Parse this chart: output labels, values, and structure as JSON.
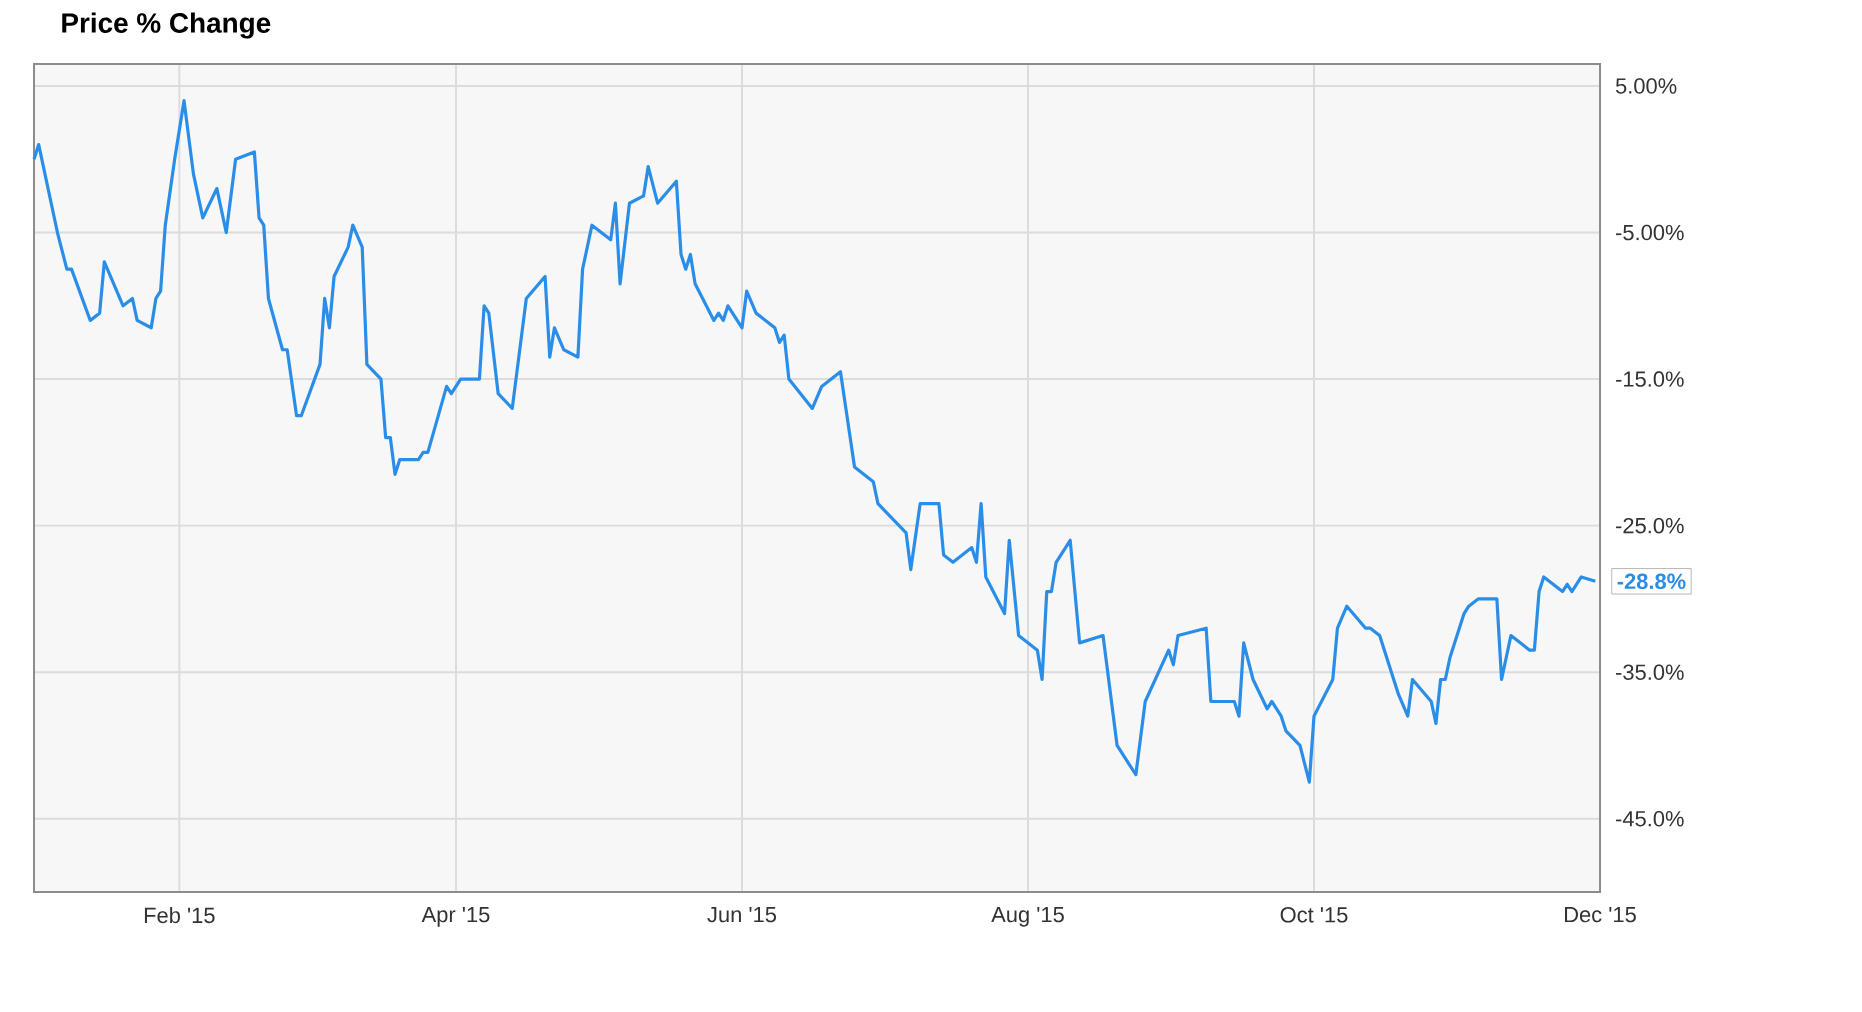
{
  "chart_data": {
    "type": "line",
    "title": "Price % Change",
    "x": [
      "2015-01-01",
      "2015-01-02",
      "2015-01-06",
      "2015-01-08",
      "2015-01-09",
      "2015-01-13",
      "2015-01-15",
      "2015-01-16",
      "2015-01-20",
      "2015-01-22",
      "2015-01-23",
      "2015-01-26",
      "2015-01-27",
      "2015-01-28",
      "2015-01-29",
      "2015-01-31",
      "2015-02-02",
      "2015-02-04",
      "2015-02-06",
      "2015-02-09",
      "2015-02-11",
      "2015-02-13",
      "2015-02-17",
      "2015-02-18",
      "2015-02-19",
      "2015-02-20",
      "2015-02-23",
      "2015-02-24",
      "2015-02-26",
      "2015-02-27",
      "2015-03-03",
      "2015-03-04",
      "2015-03-05",
      "2015-03-06",
      "2015-03-09",
      "2015-03-10",
      "2015-03-12",
      "2015-03-13",
      "2015-03-16",
      "2015-03-17",
      "2015-03-18",
      "2015-03-19",
      "2015-03-20",
      "2015-03-24",
      "2015-03-25",
      "2015-03-26",
      "2015-03-30",
      "2015-03-31",
      "2015-04-02",
      "2015-04-06",
      "2015-04-07",
      "2015-04-08",
      "2015-04-10",
      "2015-04-13",
      "2015-04-16",
      "2015-04-20",
      "2015-04-21",
      "2015-04-22",
      "2015-04-24",
      "2015-04-27",
      "2015-04-28",
      "2015-04-30",
      "2015-05-04",
      "2015-05-05",
      "2015-05-06",
      "2015-05-08",
      "2015-05-11",
      "2015-05-12",
      "2015-05-14",
      "2015-05-18",
      "2015-05-19",
      "2015-05-20",
      "2015-05-21",
      "2015-05-22",
      "2015-05-26",
      "2015-05-27",
      "2015-05-28",
      "2015-05-29",
      "2015-06-01",
      "2015-06-02",
      "2015-06-04",
      "2015-06-08",
      "2015-06-09",
      "2015-06-10",
      "2015-06-11",
      "2015-06-16",
      "2015-06-18",
      "2015-06-22",
      "2015-06-25",
      "2015-06-29",
      "2015-06-30",
      "2015-07-06",
      "2015-07-07",
      "2015-07-09",
      "2015-07-13",
      "2015-07-14",
      "2015-07-16",
      "2015-07-20",
      "2015-07-21",
      "2015-07-22",
      "2015-07-23",
      "2015-07-27",
      "2015-07-28",
      "2015-07-30",
      "2015-08-03",
      "2015-08-04",
      "2015-08-05",
      "2015-08-06",
      "2015-08-07",
      "2015-08-10",
      "2015-08-12",
      "2015-08-17",
      "2015-08-20",
      "2015-08-24",
      "2015-08-26",
      "2015-08-31",
      "2015-09-01",
      "2015-09-02",
      "2015-09-08",
      "2015-09-09",
      "2015-09-14",
      "2015-09-15",
      "2015-09-16",
      "2015-09-18",
      "2015-09-21",
      "2015-09-22",
      "2015-09-24",
      "2015-09-25",
      "2015-09-28",
      "2015-09-30",
      "2015-10-01",
      "2015-10-05",
      "2015-10-06",
      "2015-10-08",
      "2015-10-12",
      "2015-10-13",
      "2015-10-15",
      "2015-10-19",
      "2015-10-21",
      "2015-10-22",
      "2015-10-26",
      "2015-10-27",
      "2015-10-28",
      "2015-10-29",
      "2015-10-30",
      "2015-11-02",
      "2015-11-03",
      "2015-11-05",
      "2015-11-09",
      "2015-11-10",
      "2015-11-12",
      "2015-11-16",
      "2015-11-17",
      "2015-11-18",
      "2015-11-19",
      "2015-11-23",
      "2015-11-24",
      "2015-11-25",
      "2015-11-27",
      "2015-11-30"
    ],
    "series": [
      {
        "color": "#2a8ee8",
        "values": [
          0,
          1,
          -5,
          -7.5,
          -7.5,
          -11,
          -10.5,
          -7,
          -10,
          -9.5,
          -11,
          -11.5,
          -9.5,
          -9,
          -4.5,
          0,
          4,
          -1,
          -4,
          -2,
          -5,
          0,
          0.5,
          -4,
          -4.5,
          -9.5,
          -13,
          -13,
          -17.5,
          -17.5,
          -14,
          -9.5,
          -11.5,
          -8,
          -6,
          -4.5,
          -6,
          -14,
          -15,
          -19,
          -19,
          -21.5,
          -20.5,
          -20.5,
          -20,
          -20,
          -15.5,
          -16,
          -15,
          -15,
          -10,
          -10.5,
          -16,
          -17,
          -9.5,
          -8,
          -13.5,
          -11.5,
          -13,
          -13.5,
          -7.5,
          -4.5,
          -5.5,
          -3,
          -8.5,
          -3,
          -2.5,
          -0.5,
          -3,
          -1.5,
          -6.5,
          -7.5,
          -6.5,
          -8.5,
          -11,
          -10.5,
          -11,
          -10,
          -11.5,
          -9,
          -10.5,
          -11.5,
          -12.5,
          -12,
          -15,
          -17,
          -15.5,
          -14.5,
          -21,
          -22,
          -23.5,
          -25.5,
          -28,
          -23.5,
          -23.5,
          -27,
          -27.5,
          -26.5,
          -27.5,
          -23.5,
          -28.5,
          -31,
          -26,
          -32.5,
          -33.5,
          -35.5,
          -29.5,
          -29.5,
          -27.5,
          -26,
          -33,
          -32.5,
          -40,
          -42,
          -37,
          -33.5,
          -34.5,
          -32.5,
          -32,
          -37,
          -37,
          -38,
          -33,
          -35.5,
          -37.5,
          -37,
          -38,
          -39,
          -40,
          -42.5,
          -38,
          -35.5,
          -32,
          -30.5,
          -32,
          -32,
          -32.5,
          -36.5,
          -38,
          -35.5,
          -37,
          -38.5,
          -35.5,
          -35.5,
          -34,
          -31,
          -30.5,
          -30,
          -30,
          -35.5,
          -32.5,
          -33.5,
          -33.5,
          -29.5,
          -28.5,
          -29.5,
          -29,
          -29.5,
          -28.5,
          -28.8
        ]
      }
    ],
    "xlim": [
      "2015-01-01",
      "2015-12-01"
    ],
    "xticks": [
      {
        "value": "2015-02-01",
        "label": "Feb '15"
      },
      {
        "value": "2015-04-01",
        "label": "Apr '15"
      },
      {
        "value": "2015-06-01",
        "label": "Jun '15"
      },
      {
        "value": "2015-08-01",
        "label": "Aug '15"
      },
      {
        "value": "2015-10-01",
        "label": "Oct '15"
      },
      {
        "value": "2015-12-01",
        "label": "Dec '15"
      }
    ],
    "ylim": [
      -50,
      6.5
    ],
    "yticks": [
      {
        "value": 5,
        "label": "5.00%"
      },
      {
        "value": -5,
        "label": "-5.00%"
      },
      {
        "value": -15,
        "label": "-15.0%"
      },
      {
        "value": -25,
        "label": "-25.0%"
      },
      {
        "value": -35,
        "label": "-35.0%"
      },
      {
        "value": -45,
        "label": "-45.0%"
      }
    ],
    "grid": true,
    "line_style": "solid",
    "annotations": [
      {
        "text": "-28.8%",
        "x": "2015-11-30",
        "y": -28.8
      }
    ]
  }
}
